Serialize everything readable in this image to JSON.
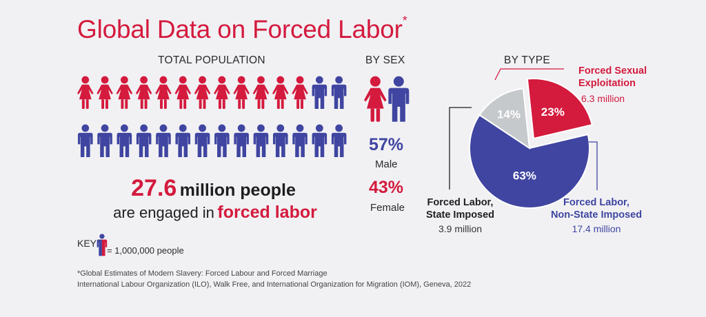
{
  "header": {
    "title": "Global Data on Forced Labor",
    "title_mark": "*"
  },
  "total_population": {
    "label": "TOTAL POPULATION",
    "icons_female": 12,
    "icons_male": 16,
    "total_number": "27.6",
    "total_unit": "million people",
    "engaged_prefix": "are engaged in",
    "engaged_emphasis": "forced labor"
  },
  "by_sex": {
    "label": "BY SEX",
    "male_pct": "57%",
    "male_label": "Male",
    "female_pct": "43%",
    "female_label": "Female"
  },
  "key": {
    "label": "KEY",
    "value": "= 1,000,000 people"
  },
  "footnote": {
    "line1": "*Global Estimates of Modern Slavery: Forced Labour and Forced Marriage",
    "line2": "International Labour Organization (ILO), Walk Free, and International Organization for Migration (IOM), Geneva, 2022"
  },
  "colors": {
    "red": "#d41a3d",
    "blue": "#3f45a0",
    "gray": "#c5c9cc"
  },
  "chart_data": {
    "type": "pie",
    "title": "BY TYPE",
    "series": [
      {
        "name": "Forced Sexual Exploitation",
        "value": 23,
        "value_label": "23%",
        "sub": "6.3 million",
        "color": "#d41a3d"
      },
      {
        "name": "Forced Labor, Non-State Imposed",
        "value": 63,
        "value_label": "63%",
        "sub": "17.4 million",
        "color": "#3f45a0"
      },
      {
        "name": "Forced Labor, State Imposed",
        "value": 14,
        "value_label": "14%",
        "sub": "3.9 million",
        "color": "#c5c9cc"
      }
    ],
    "callouts": {
      "sexual_line1": "Forced Sexual",
      "sexual_line2": "Exploitation",
      "state_line1": "Forced Labor,",
      "state_line2": "State Imposed",
      "nonstate_line1": "Forced Labor,",
      "nonstate_line2": "Non-State Imposed"
    }
  }
}
